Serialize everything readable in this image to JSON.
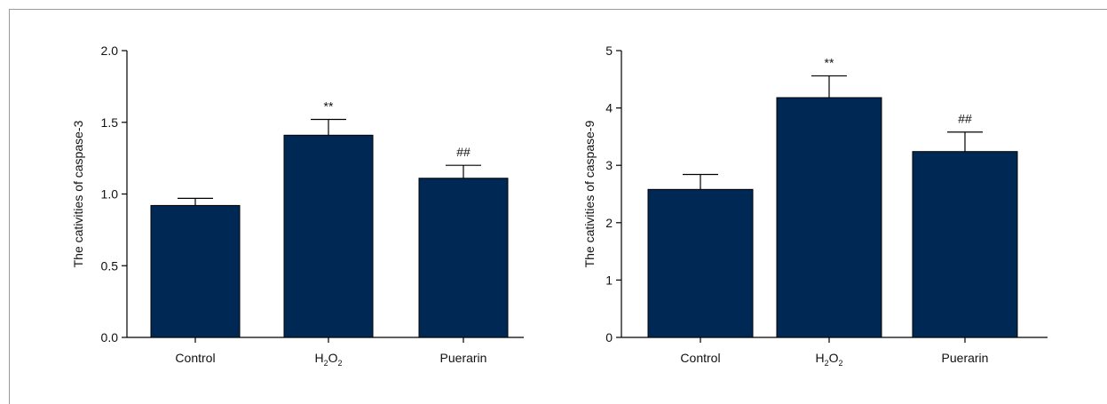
{
  "chart_data": [
    {
      "type": "bar",
      "categories": [
        "Control",
        "H2O2",
        "Puerarin"
      ],
      "values": [
        0.92,
        1.41,
        1.11
      ],
      "errors": [
        0.05,
        0.11,
        0.09
      ],
      "annotations": [
        "",
        "**",
        "##"
      ],
      "ylabel": "The cativities of caspase-3",
      "ylim": [
        0,
        2.0
      ],
      "yticks": [
        "0.0",
        "0.5",
        "1.0",
        "1.5",
        "2.0"
      ],
      "ytick_values": [
        0,
        0.5,
        1.0,
        1.5,
        2.0
      ],
      "bar_color": "#002855"
    },
    {
      "type": "bar",
      "categories": [
        "Control",
        "H2O2",
        "Puerarin"
      ],
      "values": [
        2.58,
        4.18,
        3.24
      ],
      "errors": [
        0.26,
        0.38,
        0.34
      ],
      "annotations": [
        "",
        "**",
        "##"
      ],
      "ylabel": "The cativities of caspase-9",
      "ylim": [
        0,
        5
      ],
      "yticks": [
        "0",
        "1",
        "2",
        "3",
        "4",
        "5"
      ],
      "ytick_values": [
        0,
        1,
        2,
        3,
        4,
        5
      ],
      "bar_color": "#002855"
    }
  ]
}
